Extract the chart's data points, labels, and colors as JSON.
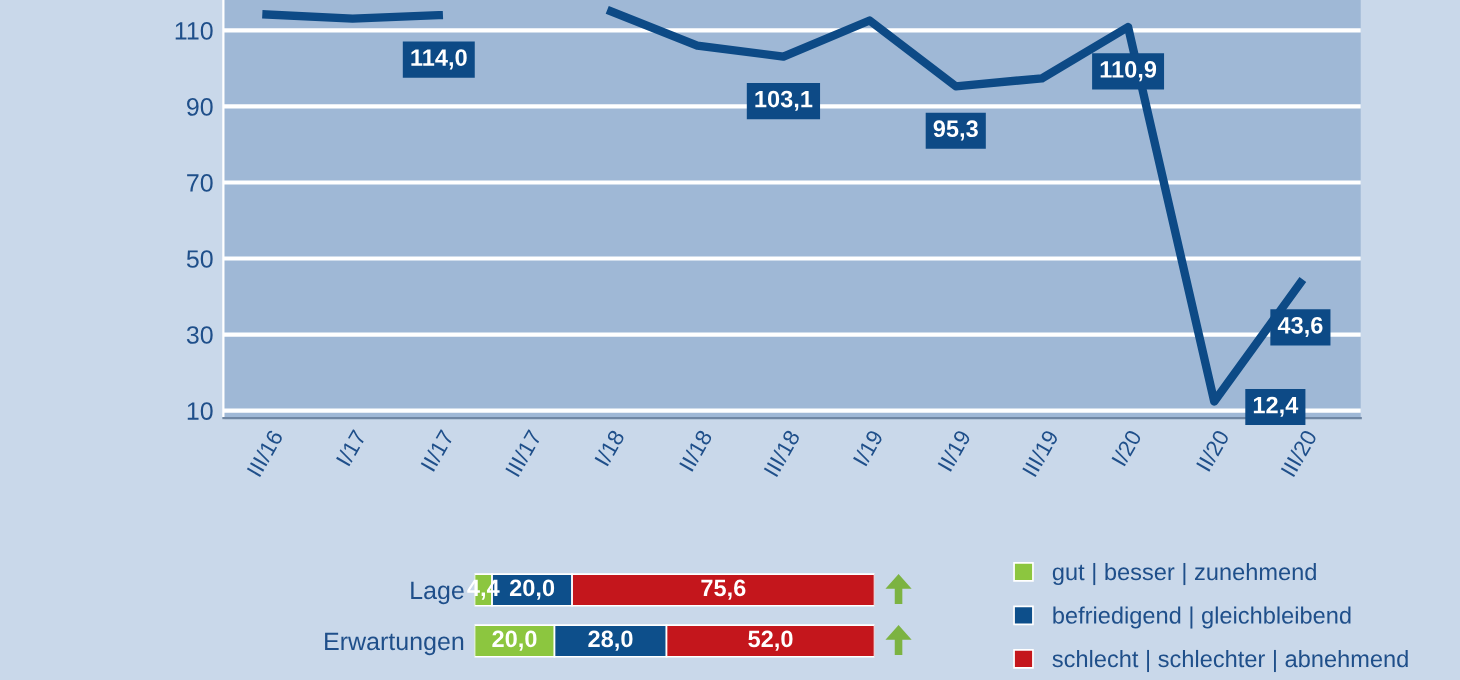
{
  "chart_data": [
    {
      "type": "line",
      "categories": [
        "III/16",
        "I/17",
        "II/17",
        "III/17",
        "I/18",
        "II/18",
        "III/18",
        "I/19",
        "II/19",
        "III/19",
        "I/20",
        "II/20",
        "III/20"
      ],
      "series": [
        {
          "color": "#0d4a86",
          "values": [
            114.2,
            113.1,
            114.0,
            null,
            115.0,
            106.0,
            103.1,
            112.6,
            95.3,
            97.4,
            110.9,
            12.4,
            43.6
          ],
          "value_labels": [
            null,
            null,
            "114,0",
            null,
            null,
            null,
            "103,1",
            null,
            "95,3",
            null,
            "110,9",
            "12,4",
            "43,6"
          ]
        }
      ],
      "ylim": [
        8,
        118
      ],
      "yticks": [
        10,
        30,
        50,
        70,
        90,
        110
      ],
      "grid": "y",
      "marker": "none",
      "line_style": "solid"
    },
    {
      "type": "bar",
      "orientation": "horizontal",
      "stacked": true,
      "categories": [
        "Lage",
        "Erwartungen"
      ],
      "series": [
        {
          "name": "gut | besser | zunehmend",
          "color": "#8cc63f",
          "values": [
            4.4,
            20.0
          ],
          "value_labels": [
            "4,4",
            "20,0"
          ]
        },
        {
          "name": "befriedigend | gleichbleibend",
          "color": "#0d4f8b",
          "values": [
            20.0,
            28.0
          ],
          "value_labels": [
            "20,0",
            "28,0"
          ]
        },
        {
          "name": "schlecht | schlechter | abnehmend",
          "color": "#c4161c",
          "values": [
            75.6,
            52.0
          ],
          "value_labels": [
            "75,6",
            "52,0"
          ]
        }
      ],
      "legend": "right"
    }
  ]
}
